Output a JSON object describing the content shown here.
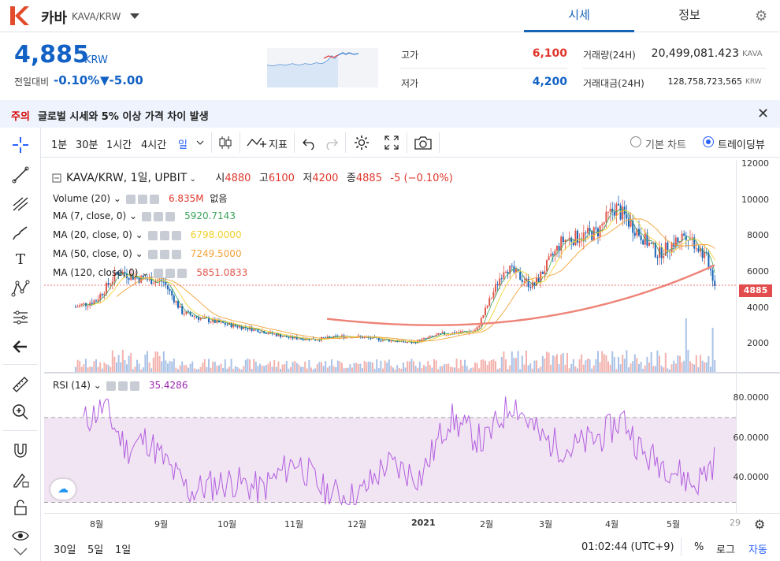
{
  "header": {
    "logo_letter": "K",
    "coin_name": "카바",
    "pair": "KAVA/KRW",
    "tabs": [
      "시세",
      "정보"
    ]
  },
  "ticker": {
    "price": "4,885",
    "unit": "KRW",
    "change_label": "전일대비",
    "change_rate": "-0.10%",
    "change_amount": "▼-5.00"
  },
  "stats": {
    "high_label": "고가",
    "high": "6,100",
    "low_label": "저가",
    "low": "4,200",
    "vol_label": "거래량(24H)",
    "vol": "20,499,081.423",
    "vol_unit": "KAVA",
    "amt_label": "거래대금(24H)",
    "amt": "128,758,723,565",
    "amt_unit": "KRW"
  },
  "notice": {
    "tag": "주의",
    "text": "글로벌 시세와 5% 이상 가격 차이 발생"
  },
  "toolbar": {
    "intervals": [
      "1분",
      "30분",
      "1시간",
      "4시간",
      "일"
    ],
    "indicator": "지표",
    "basic_chart": "기본 차트",
    "tradingview": "트레이딩뷰"
  },
  "legend": {
    "title": "KAVA/KRW, 1일, UPBIT",
    "ohlc": {
      "o_label": "시",
      "o": "4880",
      "h_label": "고",
      "h": "6100",
      "l_label": "저",
      "l": "4200",
      "c_label": "종",
      "c": "4885",
      "chg": "-5 (−0.10%)"
    },
    "volume": {
      "label": "Volume (20)",
      "v1": "6.835M",
      "v2": "없음"
    },
    "ma": [
      {
        "label": "MA (7, close, 0)",
        "value": "5920.7143",
        "color": "#3aa35a"
      },
      {
        "label": "MA (20, close, 0)",
        "value": "6798.0000",
        "color": "#f5d33a"
      },
      {
        "label": "MA (50, close, 0)",
        "value": "7249.5000",
        "color": "#f2a23a"
      },
      {
        "label": "MA (120, close, 0)",
        "value": "5851.0833",
        "color": "#e0584c"
      }
    ],
    "rsi": {
      "label": "RSI (14)",
      "value": "35.4286",
      "color": "#9c27b0"
    }
  },
  "axis": {
    "price_ticks": [
      "12000",
      "10000",
      "8000",
      "6000",
      "4000",
      "2000"
    ],
    "current_price": "4885",
    "rsi_ticks": [
      "80.0000",
      "60.0000",
      "40.0000"
    ],
    "x_ticks": [
      "8월",
      "9월",
      "10월",
      "11월",
      "12월",
      "2021",
      "2월",
      "3월",
      "4월",
      "5월",
      "29"
    ]
  },
  "bottom": {
    "ranges": [
      "30일",
      "5일",
      "1일"
    ],
    "time": "01:02:44 (UTC+9)",
    "percent": "%",
    "log": "로그",
    "auto": "자동"
  },
  "colors": {
    "up": "#e0584c",
    "down": "#1763b6",
    "accent": "#1261c4",
    "notice_bg": "#eef3fd"
  },
  "chart_data": {
    "type": "candlestick",
    "x": [
      "2020-07-20",
      "2020-07-30",
      "2020-08-10",
      "2020-08-20",
      "2020-09-01",
      "2020-09-10",
      "2020-09-20",
      "2020-10-01",
      "2020-10-15",
      "2020-11-01",
      "2020-11-15",
      "2020-12-01",
      "2020-12-15",
      "2021-01-01",
      "2021-01-15",
      "2021-02-01",
      "2021-02-15",
      "2021-03-01",
      "2021-03-15",
      "2021-04-01",
      "2021-04-10",
      "2021-04-20",
      "2021-05-01",
      "2021-05-15",
      "2021-05-25",
      "2021-05-29"
    ],
    "close": [
      3600,
      4000,
      5700,
      5300,
      5100,
      3300,
      2900,
      2600,
      2300,
      1800,
      1700,
      1900,
      1700,
      1500,
      2000,
      2200,
      6000,
      4800,
      7500,
      8000,
      9500,
      8200,
      6700,
      8000,
      6400,
      4885
    ],
    "ma120_start": "2020-11-20",
    "ma120_end": 5851,
    "volume_last": "6.835M",
    "rsi": [
      68,
      75,
      55,
      60,
      45,
      35,
      38,
      40,
      36,
      50,
      35,
      32,
      48,
      42,
      70,
      58,
      78,
      60,
      55,
      62,
      70,
      52,
      48,
      38,
      50,
      35
    ],
    "ylim": [
      0,
      12000
    ],
    "rsi_ylim": [
      25,
      90
    ],
    "rsi_bands": [
      70,
      30
    ]
  }
}
